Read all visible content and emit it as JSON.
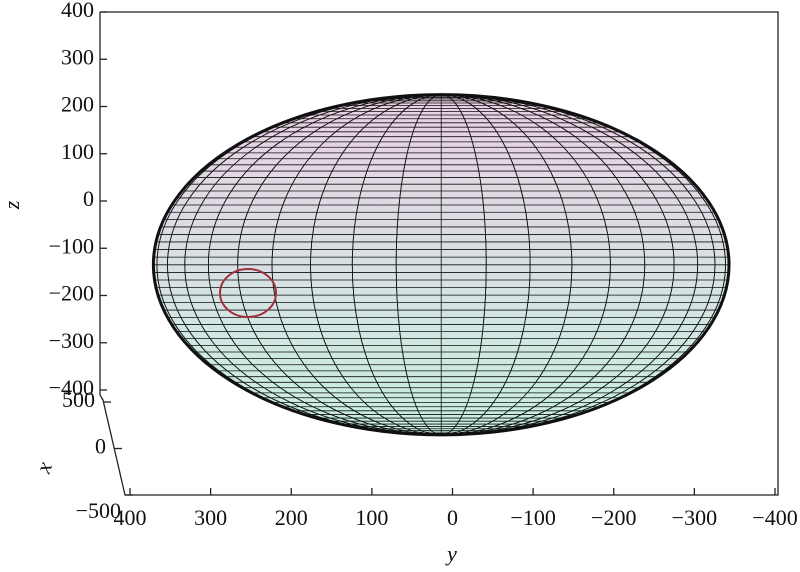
{
  "chart_data": {
    "type": "ellipsoid",
    "xlabel": "x",
    "ylabel": "y",
    "zlabel": "z",
    "center": {
      "x": 0,
      "y": 14,
      "z": -135
    },
    "radii": {
      "x": 360,
      "y": 357,
      "z": 360
    },
    "xlim": [
      500,
      -500
    ],
    "xticks": [
      {
        "value": 500,
        "label": "500"
      },
      0,
      {
        "value": -500,
        "label": "−500"
      }
    ],
    "ylim": [
      400,
      -400
    ],
    "yticks": [
      400,
      300,
      200,
      100,
      0,
      {
        "value": -100,
        "label": "−100"
      },
      {
        "value": -200,
        "label": "−200"
      },
      {
        "value": -300,
        "label": "−300"
      },
      {
        "value": -400,
        "label": "−400"
      }
    ],
    "zlim": [
      -400,
      400
    ],
    "zticks": [
      {
        "value": -400,
        "label": "−400"
      },
      {
        "value": -300,
        "label": "−300"
      },
      {
        "value": -200,
        "label": "−200"
      },
      {
        "value": -100,
        "label": "−100"
      },
      0,
      100,
      200,
      300,
      400
    ],
    "color_top": "#ead0e4",
    "color_bottom": "#c6f0e2",
    "mesh_color": "#111111",
    "meridians": 40,
    "parallels": 70
  }
}
